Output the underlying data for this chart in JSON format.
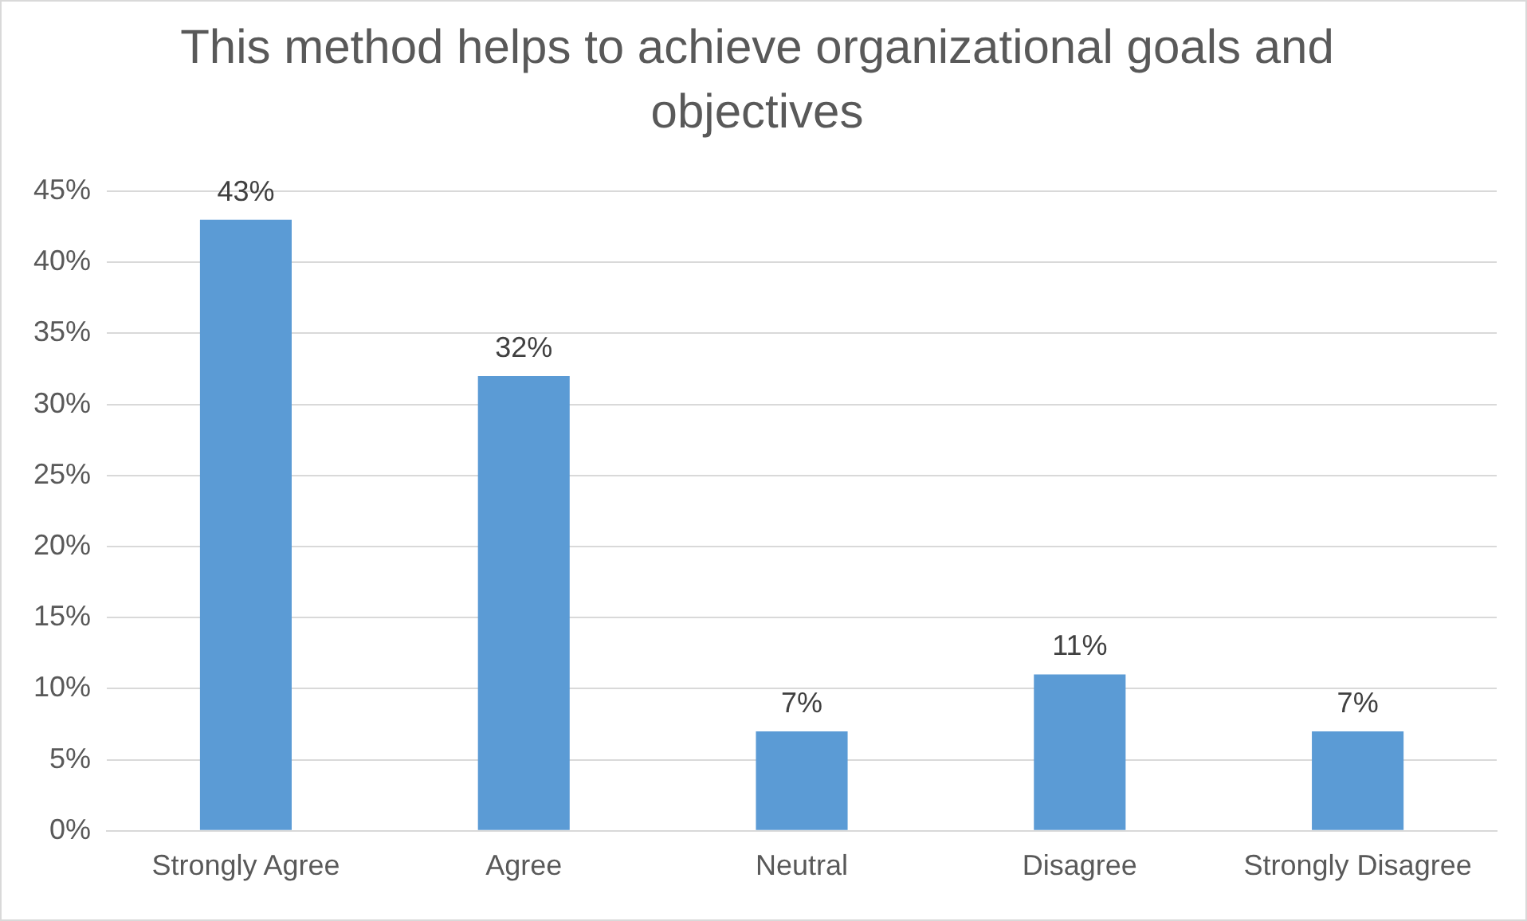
{
  "chart_data": {
    "type": "bar",
    "title": "This method helps to achieve organizational goals and objectives",
    "categories": [
      "Strongly Agree",
      "Agree",
      "Neutral",
      "Disagree",
      "Strongly Disagree"
    ],
    "values": [
      43,
      32,
      7,
      11,
      7
    ],
    "value_labels": [
      "43%",
      "32%",
      "7%",
      "11%",
      "7%"
    ],
    "color": "#5b9bd5",
    "ylim": [
      0,
      45
    ],
    "yticks": [
      {
        "value": 0,
        "label": "0%"
      },
      {
        "value": 5,
        "label": "5%"
      },
      {
        "value": 10,
        "label": "10%"
      },
      {
        "value": 15,
        "label": "15%"
      },
      {
        "value": 20,
        "label": "20%"
      },
      {
        "value": 25,
        "label": "25%"
      },
      {
        "value": 30,
        "label": "30%"
      },
      {
        "value": 35,
        "label": "35%"
      },
      {
        "value": 40,
        "label": "40%"
      },
      {
        "value": 45,
        "label": "45%"
      }
    ],
    "grid": "y",
    "legend": false
  }
}
